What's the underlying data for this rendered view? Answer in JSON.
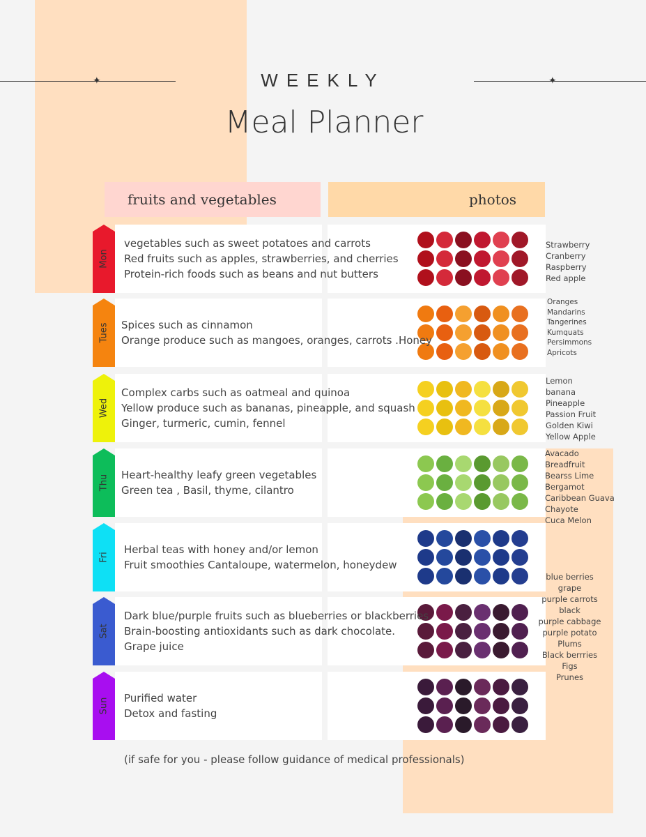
{
  "header": {
    "kicker": "WEEKLY",
    "title": "Meal Planner"
  },
  "columns": {
    "left": "fruits and vegetables",
    "right": "photos"
  },
  "colors": {
    "peach": "#ffdfc0",
    "left_header": "#ffd6d0",
    "right_header": "#ffd9a8"
  },
  "days": [
    {
      "label": "Mon",
      "color": "#e8192c",
      "lines": [
        "vegetables such as sweet potatoes and carrots",
        "Red fruits such as apples, strawberries, and cherries",
        "Protein-rich foods such as beans and nut butters"
      ],
      "items": [
        "Strawberry",
        "Cranberry",
        "Raspberry",
        "Red apple"
      ],
      "photo_colors": [
        "#b0101c",
        "#d42a3a",
        "#8a1020",
        "#c01830",
        "#e04050",
        "#a01828"
      ]
    },
    {
      "label": "Tues",
      "color": "#f5840f",
      "lines": [
        "Spices such as cinnamon",
        "Orange produce such as mangoes, oranges, carrots .Honey"
      ],
      "items": [
        "Oranges",
        "Mandarins",
        "Tangerines",
        "Kumquats",
        "Persimmons",
        "Apricots"
      ],
      "photo_colors": [
        "#f07a10",
        "#e86010",
        "#f5a030",
        "#d85a10",
        "#f09020",
        "#e87020"
      ]
    },
    {
      "label": "Wed",
      "color": "#eef20a",
      "lines": [
        "Complex carbs such as oatmeal and quinoa",
        "Yellow produce such as bananas, pineapple, and squash",
        "Ginger, turmeric, cumin, fennel"
      ],
      "items": [
        "Lemon",
        "banana",
        "Pineapple",
        "Passion Fruit",
        "Golden Kiwi",
        "Yellow Apple"
      ],
      "photo_colors": [
        "#f5d020",
        "#e8c010",
        "#f0b820",
        "#f5e040",
        "#d8a818",
        "#f0c830"
      ]
    },
    {
      "label": "Thu",
      "color": "#0dbd5a",
      "lines": [
        "Heart-healthy leafy green vegetables",
        "Green tea , Basil, thyme, cilantro"
      ],
      "items": [
        "Avacado",
        "Breadfruit",
        "Bearss Lime",
        "Bergamot",
        "Caribbean Guava",
        "Chayote",
        "Cuca Melon"
      ],
      "photo_colors": [
        "#8cc850",
        "#6ab040",
        "#a8d870",
        "#5a9a30",
        "#98c860",
        "#7ab848"
      ]
    },
    {
      "label": "Fri",
      "color": "#0ee0f5",
      "lines": [
        "Herbal teas with honey and/or lemon",
        "Fruit smoothies Cantaloupe, watermelon, honeydew"
      ],
      "items": [],
      "photo_colors": [
        "#1e3a8a",
        "#24489c",
        "#1a3070",
        "#2a50a8",
        "#1e3a8a",
        "#243e90"
      ]
    },
    {
      "label": "Sat",
      "color": "#3a5bd0",
      "lines": [
        "Dark blue/purple fruits such as blueberries or blackberries",
        "Brain-boosting antioxidants such as dark chocolate.",
        "Grape juice"
      ],
      "items": [
        "blue berries",
        "grape",
        "purple carrots",
        "black",
        "purple cabbage",
        "purple potato",
        "Plums",
        "Black berrries",
        "Figs",
        "Prunes"
      ],
      "photo_colors": [
        "#5a1a3a",
        "#7a1a4a",
        "#4a2040",
        "#6a3070",
        "#3a1a30",
        "#502050"
      ]
    },
    {
      "label": "Sun",
      "color": "#a80ef0",
      "lines": [
        "Purified water",
        "Detox and fasting"
      ],
      "items": [],
      "photo_colors": [
        "#3a1a3a",
        "#5a2050",
        "#2a1a2a",
        "#6a2a5a",
        "#4a1a40",
        "#3a2040"
      ]
    }
  ],
  "footnote": "(if safe for you - please follow guidance of medical professionals)"
}
